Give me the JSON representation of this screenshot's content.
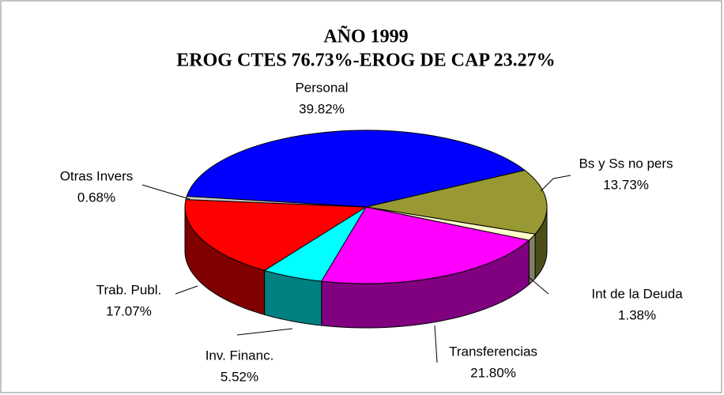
{
  "chart_data": {
    "type": "pie3d",
    "title": [
      "AÑO 1999",
      "EROG CTES 76.73%-EROG DE CAP 23.27%"
    ],
    "categories": [
      "Personal",
      "Bs y Ss no pers",
      "Int de la Deuda",
      "Transferencias",
      "Inv. Financ.",
      "Trab. Publ.",
      "Otras Invers"
    ],
    "values": [
      39.82,
      13.73,
      1.38,
      21.8,
      5.52,
      17.07,
      0.68
    ],
    "value_labels": [
      "39.82%",
      "13.73%",
      "1.38%",
      "21.80%",
      "5.52%",
      "17.07%",
      "0.68%"
    ],
    "colors": [
      "#0000ff",
      "#999933",
      "#ffffcc",
      "#ff00ff",
      "#00ffff",
      "#ff0000",
      "#cccccc"
    ]
  }
}
